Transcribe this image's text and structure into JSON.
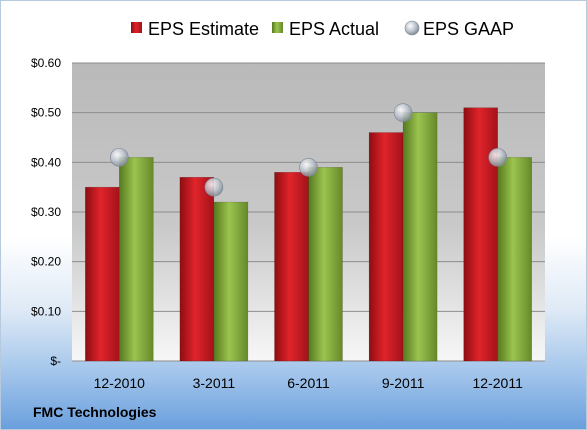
{
  "chart_data": {
    "type": "bar",
    "categories": [
      "12-2010",
      "3-2011",
      "6-2011",
      "9-2011",
      "12-2011"
    ],
    "series": [
      {
        "name": "EPS Estimate",
        "kind": "bar",
        "color": "#c0161e",
        "values": [
          0.35,
          0.37,
          0.38,
          0.46,
          0.51
        ]
      },
      {
        "name": "EPS Actual",
        "kind": "bar",
        "color": "#79a535",
        "values": [
          0.41,
          0.32,
          0.39,
          0.5,
          0.41
        ]
      },
      {
        "name": "EPS GAAP",
        "kind": "marker",
        "color": "#b0b8c2",
        "values": [
          0.41,
          0.35,
          0.39,
          0.5,
          0.41
        ]
      }
    ],
    "y_ticks": [
      {
        "value": 0,
        "label": "$-"
      },
      {
        "value": 0.1,
        "label": "$0.10"
      },
      {
        "value": 0.2,
        "label": "$0.20"
      },
      {
        "value": 0.3,
        "label": "$0.30"
      },
      {
        "value": 0.4,
        "label": "$0.40"
      },
      {
        "value": 0.5,
        "label": "$0.50"
      },
      {
        "value": 0.6,
        "label": "$0.60"
      }
    ],
    "ylim": [
      0,
      0.6
    ],
    "grid": true,
    "legend_position": "top",
    "source_label": "FMC Technologies"
  }
}
